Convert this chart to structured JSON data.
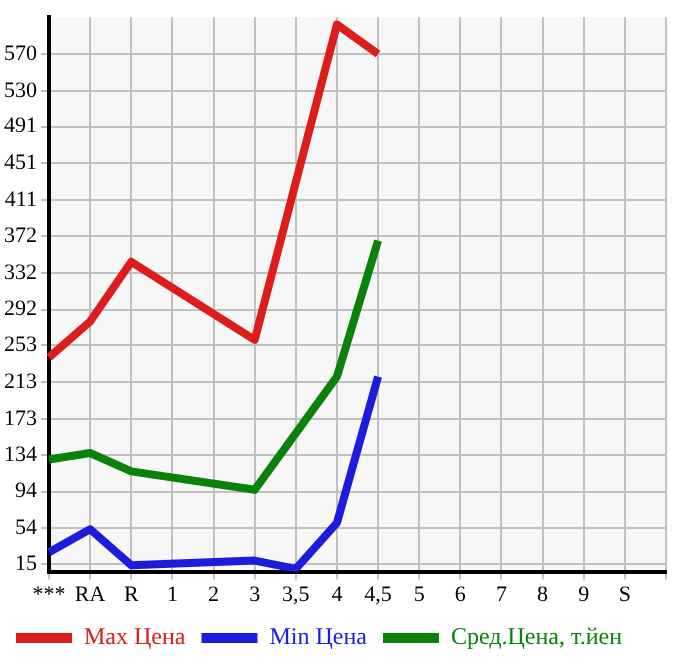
{
  "chart_data": {
    "type": "line",
    "categories": [
      "***",
      "RA",
      "R",
      "1",
      "2",
      "3",
      "3,5",
      "4",
      "4,5",
      "5",
      "6",
      "7",
      "8",
      "9",
      "S",
      null
    ],
    "series": [
      {
        "name": "Max Цена",
        "color": "#dd1c1c",
        "values": [
          240,
          279,
          344,
          null,
          null,
          259,
          null,
          602,
          570,
          null,
          null,
          null,
          null,
          null,
          null,
          null
        ]
      },
      {
        "name": "Min Цена",
        "color": "#1c1cdd",
        "values": [
          28,
          53,
          14,
          null,
          null,
          19,
          10,
          60,
          219,
          null,
          null,
          null,
          null,
          null,
          null,
          null
        ]
      },
      {
        "name": "Сред.Цена, т.йен",
        "color": "#0a820a",
        "values": [
          129,
          136,
          116,
          null,
          null,
          96,
          null,
          219,
          367,
          null,
          null,
          null,
          null,
          null,
          null,
          null
        ]
      }
    ],
    "ylim": [
      7,
      610
    ],
    "yticks": [
      15,
      54,
      94,
      134,
      173,
      213,
      253,
      292,
      332,
      372,
      411,
      451,
      491,
      530,
      570
    ],
    "grid": true,
    "legend": "bottom",
    "marker": "none",
    "line_style": "solid"
  }
}
